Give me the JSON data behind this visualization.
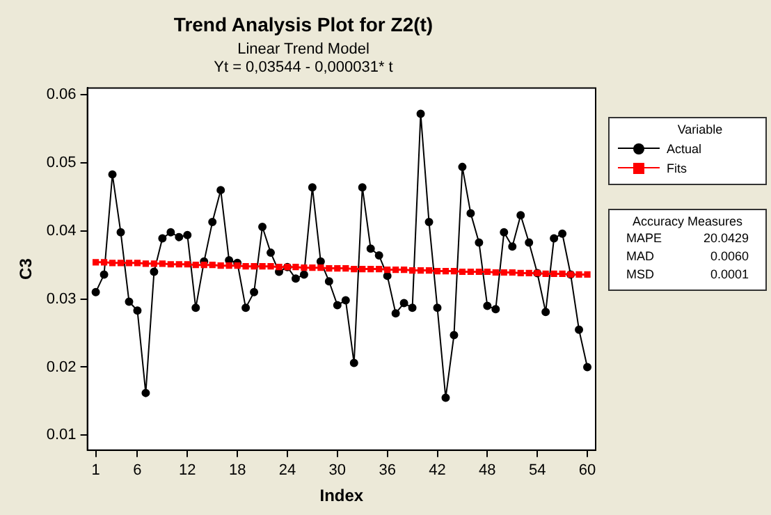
{
  "chart_data": {
    "type": "line",
    "title": "Trend Analysis Plot for Z2(t)",
    "subtitle": "Linear Trend Model\nYt = 0,03544 - 0,000031* t",
    "xlabel": "Index",
    "ylabel": "C3",
    "legend_title": "Variable",
    "legend": "right",
    "grid": false,
    "line_style": "solid",
    "x": [
      1,
      2,
      3,
      4,
      5,
      6,
      7,
      8,
      9,
      10,
      11,
      12,
      13,
      14,
      15,
      16,
      17,
      18,
      19,
      20,
      21,
      22,
      23,
      24,
      25,
      26,
      27,
      28,
      29,
      30,
      31,
      32,
      33,
      34,
      35,
      36,
      37,
      38,
      39,
      40,
      41,
      42,
      43,
      44,
      45,
      46,
      47,
      48,
      49,
      50,
      51,
      52,
      53,
      54,
      55,
      56,
      57,
      58,
      59,
      60
    ],
    "xlim": [
      0,
      61
    ],
    "xticks": [
      1,
      6,
      12,
      18,
      24,
      30,
      36,
      42,
      48,
      54,
      60
    ],
    "ylim": [
      0.0078,
      0.061
    ],
    "yticks": [
      0.01,
      0.02,
      0.03,
      0.04,
      0.05,
      0.06
    ],
    "series": [
      {
        "name": "Actual",
        "color": "#000000",
        "marker": "circle",
        "values": [
          0.031,
          0.0336,
          0.0483,
          0.0398,
          0.0296,
          0.0283,
          0.0162,
          0.034,
          0.0389,
          0.0398,
          0.0391,
          0.0394,
          0.0287,
          0.0355,
          0.0413,
          0.046,
          0.0357,
          0.0353,
          0.0287,
          0.031,
          0.0406,
          0.0368,
          0.034,
          0.0347,
          0.033,
          0.0336,
          0.0464,
          0.0355,
          0.0326,
          0.0291,
          0.0298,
          0.0206,
          0.0464,
          0.0374,
          0.0364,
          0.0334,
          0.0279,
          0.0294,
          0.0287,
          0.0572,
          0.0413,
          0.0287,
          0.0155,
          0.0247,
          0.0494,
          0.0426,
          0.0383,
          0.029,
          0.0285,
          0.0398,
          0.0377,
          0.0423,
          0.0383,
          0.0338,
          0.0281,
          0.0389,
          0.0396,
          0.0336,
          0.0255,
          0.02
        ]
      },
      {
        "name": "Fits",
        "color": "#ff0000",
        "marker": "square",
        "values": [
          0.0354,
          0.0354,
          0.0353,
          0.0353,
          0.0353,
          0.0353,
          0.0352,
          0.0352,
          0.0352,
          0.0351,
          0.0351,
          0.0351,
          0.035,
          0.035,
          0.035,
          0.0349,
          0.0349,
          0.0349,
          0.0348,
          0.0348,
          0.0348,
          0.0348,
          0.0347,
          0.0347,
          0.0347,
          0.0346,
          0.0346,
          0.0346,
          0.0345,
          0.0345,
          0.0345,
          0.0344,
          0.0344,
          0.0344,
          0.0344,
          0.0343,
          0.0343,
          0.0343,
          0.0342,
          0.0342,
          0.0342,
          0.0341,
          0.0341,
          0.0341,
          0.034,
          0.034,
          0.034,
          0.034,
          0.0339,
          0.0339,
          0.0339,
          0.0338,
          0.0338,
          0.0338,
          0.0337,
          0.0337,
          0.0337,
          0.0336,
          0.0336,
          0.0336
        ]
      }
    ],
    "annotations": [
      "Accuracy Measures",
      "MAPE",
      "20.0429",
      "MAD",
      "0.0060",
      "MSD",
      "0.0001"
    ]
  }
}
